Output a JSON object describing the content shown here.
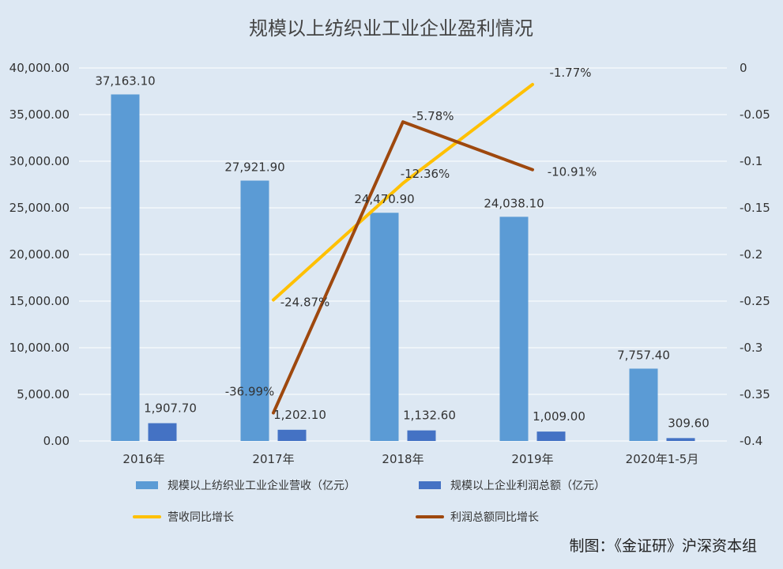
{
  "chart_data": {
    "type": "bar",
    "title": "规模以上纺织业工业企业盈利情况",
    "categories": [
      "2016年",
      "2017年",
      "2018年",
      "2019年",
      "2020年1-5月"
    ],
    "left_axis": {
      "range": [
        0,
        40000
      ],
      "ticks": [
        "0.00",
        "5,000.00",
        "10,000.00",
        "15,000.00",
        "20,000.00",
        "25,000.00",
        "30,000.00",
        "35,000.00",
        "40,000.00"
      ]
    },
    "right_axis": {
      "range": [
        -0.4,
        0
      ],
      "ticks": [
        "-0.4",
        "-0.35",
        "-0.3",
        "-0.25",
        "-0.2",
        "-0.15",
        "-0.1",
        "-0.05",
        "0"
      ]
    },
    "series": [
      {
        "name": "规模以上纺织业工业企业营收（亿元）",
        "type": "bar",
        "axis": "left",
        "color": "#5b9bd5",
        "values": [
          37163.1,
          27921.9,
          24470.9,
          24038.1,
          7757.4
        ],
        "labels": [
          "37,163.10",
          "27,921.90",
          "24,470.90",
          "24,038.10",
          "7,757.40"
        ]
      },
      {
        "name": "规模以上企业利润总额（亿元）",
        "type": "bar",
        "axis": "left",
        "color": "#4472c4",
        "values": [
          1907.7,
          1202.1,
          1132.6,
          1009.0,
          309.6
        ],
        "labels": [
          "1,907.70",
          "1,202.10",
          "1,132.60",
          "1,009.00",
          "309.60"
        ]
      },
      {
        "name": "营收同比增长",
        "type": "line",
        "axis": "right",
        "color": "#ffc000",
        "values": [
          null,
          -0.2487,
          -0.1236,
          -0.0177,
          null
        ],
        "labels": [
          null,
          "-24.87%",
          "-12.36%",
          "-1.77%",
          null
        ]
      },
      {
        "name": "利润总额同比增长",
        "type": "line",
        "axis": "right",
        "color": "#9e480e",
        "values": [
          null,
          -0.3699,
          -0.0578,
          -0.1091,
          null
        ],
        "labels": [
          null,
          "-36.99%",
          "-5.78%",
          "-10.91%",
          null
        ]
      }
    ],
    "legend": "bottom",
    "grid": true
  },
  "footer": {
    "credit": "制图：《金证研》沪深资本组"
  },
  "colors": {
    "background": "#dde8f3",
    "grid": "#ffffff"
  }
}
